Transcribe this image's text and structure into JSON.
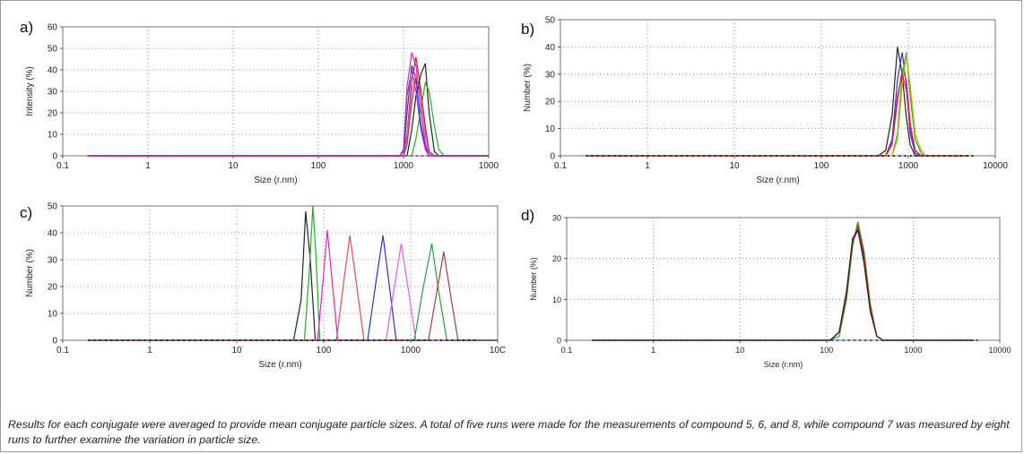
{
  "caption": "Results for each conjugate were averaged to provide mean conjugate particle sizes. A total of five runs were made for the measurements of compound 5, 6, and 8, while compound 7 was measured by eight runs to further examine the variation in particle size.",
  "chart_data": [
    {
      "panel": "a)",
      "type": "line",
      "xlabel": "Size (r.nm)",
      "ylabel": "Intensity (%)",
      "xscale": "log",
      "xlim": [
        0.1,
        10000
      ],
      "ylim": [
        0,
        60
      ],
      "xticks": [
        "0.1",
        "1",
        "10",
        "100",
        "1000",
        "1000"
      ],
      "yticks": [
        "0",
        "10",
        "20",
        "30",
        "40",
        "50",
        "60"
      ],
      "grid": true,
      "x": [
        0.2,
        500,
        750,
        900,
        1000,
        1100,
        1250,
        1400,
        1600,
        1800,
        2000,
        2300,
        2600,
        3000,
        10000
      ],
      "series": [
        {
          "color": "#e020c0",
          "values": [
            0,
            0,
            0,
            0,
            2,
            32,
            48,
            42,
            22,
            6,
            0,
            0,
            0,
            0,
            0
          ]
        },
        {
          "color": "#d82020",
          "values": [
            0,
            0,
            0,
            0,
            0,
            10,
            35,
            46,
            30,
            12,
            2,
            0,
            0,
            0,
            0
          ]
        },
        {
          "color": "#3030d8",
          "values": [
            0,
            0,
            0,
            0,
            0,
            20,
            42,
            36,
            15,
            4,
            0,
            0,
            0,
            0,
            0
          ]
        },
        {
          "color": "#222222",
          "values": [
            0,
            0,
            0,
            0,
            0,
            0,
            12,
            28,
            38,
            43,
            20,
            2,
            0,
            0,
            0
          ]
        },
        {
          "color": "#20b020",
          "values": [
            0,
            0,
            0,
            0,
            0,
            0,
            0,
            8,
            22,
            34,
            30,
            14,
            3,
            0,
            0
          ]
        },
        {
          "color": "#e0709a",
          "values": [
            0,
            0,
            0,
            0,
            0,
            8,
            30,
            38,
            28,
            10,
            1,
            0,
            0,
            0,
            0
          ]
        },
        {
          "color": "#9040c0",
          "values": [
            0,
            0,
            0,
            0,
            3,
            28,
            40,
            30,
            12,
            3,
            0,
            0,
            0,
            0,
            0
          ]
        },
        {
          "color": "#b03050",
          "values": [
            0,
            0,
            0,
            0,
            0,
            5,
            25,
            36,
            30,
            14,
            2,
            0,
            0,
            0,
            0
          ]
        }
      ]
    },
    {
      "panel": "b)",
      "type": "line",
      "xlabel": "Size (r.nm)",
      "ylabel": "Number (%)",
      "xscale": "log",
      "xlim": [
        0.1,
        10000
      ],
      "ylim": [
        0,
        50
      ],
      "xticks": [
        "0.1",
        "1",
        "10",
        "100",
        "1000",
        "10000"
      ],
      "yticks": [
        "0",
        "10",
        "20",
        "30",
        "40",
        "50"
      ],
      "grid": true,
      "x": [
        0.2,
        450,
        550,
        650,
        750,
        850,
        950,
        1050,
        1200,
        1400,
        1600,
        5000
      ],
      "series": [
        {
          "color": "#222222",
          "values": [
            0,
            0,
            2,
            15,
            40,
            30,
            14,
            4,
            0,
            0,
            0,
            0
          ]
        },
        {
          "color": "#3030d8",
          "values": [
            0,
            0,
            0,
            6,
            28,
            38,
            26,
            8,
            1,
            0,
            0,
            0
          ]
        },
        {
          "color": "#e020c0",
          "values": [
            0,
            0,
            0,
            4,
            20,
            32,
            28,
            12,
            2,
            0,
            0,
            0
          ]
        },
        {
          "color": "#20b020",
          "values": [
            0,
            0,
            0,
            0,
            8,
            30,
            38,
            22,
            6,
            1,
            0,
            0
          ]
        },
        {
          "color": "#c8b000",
          "values": [
            0,
            0,
            0,
            0,
            6,
            26,
            37,
            26,
            8,
            2,
            0,
            0
          ]
        },
        {
          "color": "#d82020",
          "values": [
            0,
            0,
            0,
            5,
            22,
            30,
            24,
            10,
            2,
            0,
            0,
            0
          ]
        }
      ]
    },
    {
      "panel": "c)",
      "type": "line",
      "xlabel": "Size (r.nm)",
      "ylabel": "Number (%)",
      "xscale": "log",
      "xlim": [
        0.1,
        10000
      ],
      "ylim": [
        0,
        50
      ],
      "xticks": [
        "0.1",
        "1",
        "10",
        "100",
        "1000",
        "10C"
      ],
      "yticks": [
        "0",
        "10",
        "20",
        "30",
        "40",
        "50"
      ],
      "grid": true,
      "series": [
        {
          "color": "#222222",
          "x": [
            0.2,
            45,
            55,
            62,
            70,
            80,
            10000
          ],
          "values": [
            0,
            0,
            15,
            48,
            30,
            0,
            0
          ]
        },
        {
          "color": "#20b020",
          "x": [
            0.2,
            60,
            68,
            75,
            82,
            90,
            10000
          ],
          "values": [
            0,
            0,
            25,
            50,
            30,
            0,
            0
          ]
        },
        {
          "color": "#e020c0",
          "x": [
            0.2,
            85,
            100,
            110,
            125,
            145,
            10000
          ],
          "values": [
            0,
            0,
            25,
            41,
            22,
            0,
            0
          ]
        },
        {
          "color": "#e05050",
          "x": [
            0.2,
            140,
            170,
            200,
            240,
            290,
            10000
          ],
          "values": [
            0,
            0,
            22,
            39,
            20,
            0,
            0
          ]
        },
        {
          "color": "#3030d8",
          "x": [
            0.2,
            320,
            400,
            480,
            570,
            680,
            10000
          ],
          "values": [
            0,
            0,
            22,
            39,
            20,
            0,
            0
          ]
        },
        {
          "color": "#e060e0",
          "x": [
            0.2,
            520,
            650,
            780,
            950,
            1150,
            10000
          ],
          "values": [
            0,
            0,
            20,
            36,
            18,
            0,
            0
          ]
        },
        {
          "color": "#20a040",
          "x": [
            0.2,
            1100,
            1400,
            1750,
            2100,
            2600,
            10000
          ],
          "values": [
            0,
            0,
            20,
            36,
            18,
            0,
            0
          ]
        },
        {
          "color": "#a04040",
          "x": [
            0.2,
            1600,
            2000,
            2400,
            2900,
            3500,
            10000
          ],
          "values": [
            0,
            0,
            18,
            33,
            16,
            0,
            0
          ]
        }
      ]
    },
    {
      "panel": "d)",
      "type": "line",
      "xlabel": "Size (r.nm)",
      "ylabel": "Number (%)",
      "xscale": "log",
      "xlim": [
        0.1,
        10000
      ],
      "ylim": [
        0,
        30
      ],
      "xticks": [
        "0.1",
        "1",
        "10",
        "100",
        "1000",
        "10000"
      ],
      "yticks": [
        "0",
        "10",
        "20",
        "30"
      ],
      "grid": true,
      "x": [
        0.2,
        110,
        140,
        170,
        200,
        230,
        270,
        320,
        380,
        450,
        5000
      ],
      "series": [
        {
          "color": "#3030d8",
          "values": [
            0,
            0,
            2,
            12,
            24,
            27,
            20,
            8,
            1,
            0,
            0
          ]
        },
        {
          "color": "#20b020",
          "values": [
            0,
            0,
            1,
            10,
            23,
            29,
            22,
            9,
            1,
            0,
            0
          ]
        },
        {
          "color": "#d82020",
          "values": [
            0,
            0,
            2,
            11,
            24,
            28,
            21,
            8,
            1,
            0,
            0
          ]
        },
        {
          "color": "#222222",
          "values": [
            0,
            0,
            2,
            12,
            25,
            27,
            19,
            7,
            1,
            0,
            0
          ]
        }
      ]
    }
  ]
}
